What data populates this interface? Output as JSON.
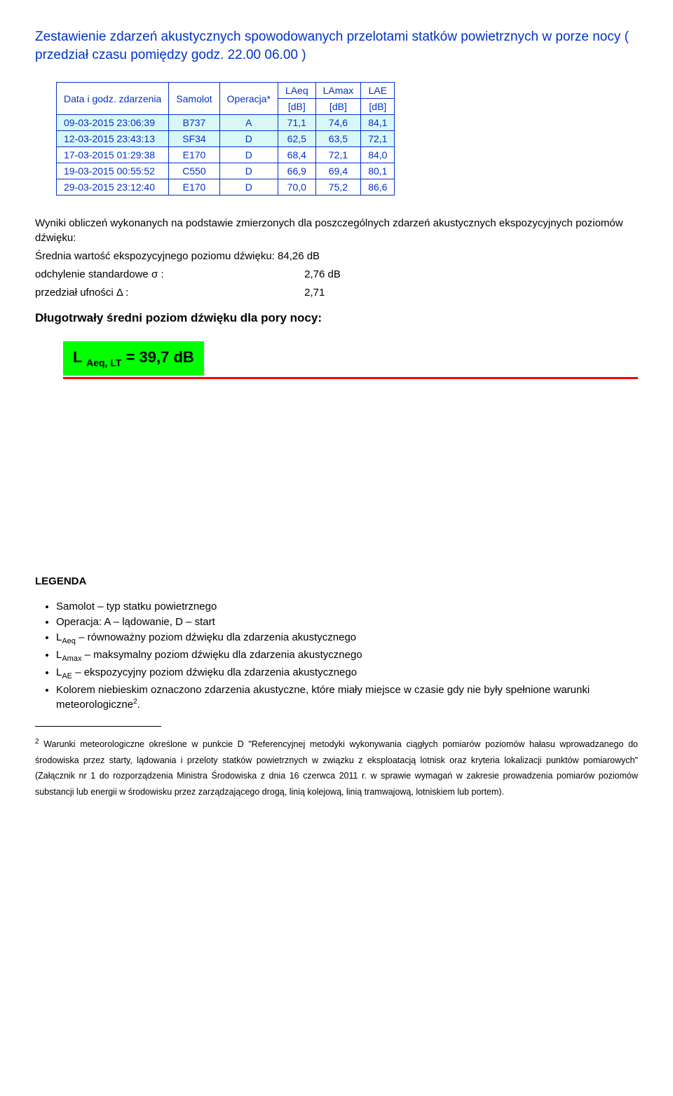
{
  "title": "Zestawienie zdarzeń akustycznych spowodowanych przelotami statków powietrznych w porze nocy ( przedział czasu pomiędzy godz. 22.00 06.00 )",
  "table": {
    "headers": {
      "c0": "Data i godz. zdarzenia",
      "c1": "Samolot",
      "c2": "Operacja*",
      "c3a": "LAeq",
      "c3b": "[dB]",
      "c4a": "LAmax",
      "c4b": "[dB]",
      "c5a": "LAE",
      "c5b": "[dB]"
    },
    "rows": [
      {
        "hl": true,
        "c0": "09-03-2015 23:06:39",
        "c1": "B737",
        "c2": "A",
        "c3": "71,1",
        "c4": "74,6",
        "c5": "84,1"
      },
      {
        "hl": true,
        "c0": "12-03-2015 23:43:13",
        "c1": "SF34",
        "c2": "D",
        "c3": "62,5",
        "c4": "63,5",
        "c5": "72,1"
      },
      {
        "hl": false,
        "c0": "17-03-2015 01:29:38",
        "c1": "E170",
        "c2": "D",
        "c3": "68,4",
        "c4": "72,1",
        "c5": "84,0"
      },
      {
        "hl": false,
        "c0": "19-03-2015 00:55:52",
        "c1": "C550",
        "c2": "D",
        "c3": "66,9",
        "c4": "69,4",
        "c5": "80,1"
      },
      {
        "hl": false,
        "c0": "29-03-2015 23:12:40",
        "c1": "E170",
        "c2": "D",
        "c3": "70,0",
        "c4": "75,2",
        "c5": "86,6"
      }
    ]
  },
  "results": {
    "line1": "Wyniki obliczeń wykonanych na podstawie zmierzonych dla poszczególnych zdarzeń akustycznych ekspozycyjnych poziomów dźwięku:",
    "line2": "Średnia wartość ekspozycyjnego poziomu dźwięku: 84,26 dB",
    "line3a": "odchylenie standardowe σ :",
    "line3b": "2,76 dB",
    "line4a": "przedział ufności Δ :",
    "line4b": "2,71",
    "heading": "Długotrwały średni poziom dźwięku dla pory nocy:",
    "box_prefix": "L ",
    "box_sub": "Aeq, LT",
    "box_rest": " = 39,7 dB"
  },
  "legend": {
    "title": "LEGENDA",
    "items": {
      "i0": "Samolot – typ statku powietrznego",
      "i1": "Operacja: A – lądowanie, D – start",
      "i2a": "L",
      "i2sub": "Aeq",
      "i2b": " – równoważny poziom dźwięku dla zdarzenia akustycznego",
      "i3a": "L",
      "i3sub": "Amax",
      "i3b": " – maksymalny poziom dźwięku dla zdarzenia akustycznego",
      "i4a": "L",
      "i4sub": "AE",
      "i4b": " – ekspozycyjny poziom dźwięku dla zdarzenia akustycznego",
      "i5a": "Kolorem niebieskim oznaczono zdarzenia akustyczne, które miały miejsce w czasie gdy nie były spełnione warunki meteorologiczne",
      "i5sup": "2",
      "i5b": "."
    }
  },
  "footnote": {
    "num": "2",
    "text": " Warunki meteorologiczne określone w punkcie D \"Referencyjnej metodyki wykonywania ciągłych pomiarów poziomów hałasu wprowadzanego do środowiska przez starty, lądowania i przeloty statków powietrznych w związku z eksploatacją lotnisk oraz kryteria lokalizacji punktów pomiarowych\" (Załącznik nr 1 do rozporządzenia Ministra Środowiska z dnia 16 czerwca 2011 r. w sprawie wymagań w zakresie prowadzenia pomiarów poziomów substancji lub energii w środowisku przez zarządzającego drogą, linią kolejową, linią tramwajową, lotniskiem lub portem)."
  }
}
